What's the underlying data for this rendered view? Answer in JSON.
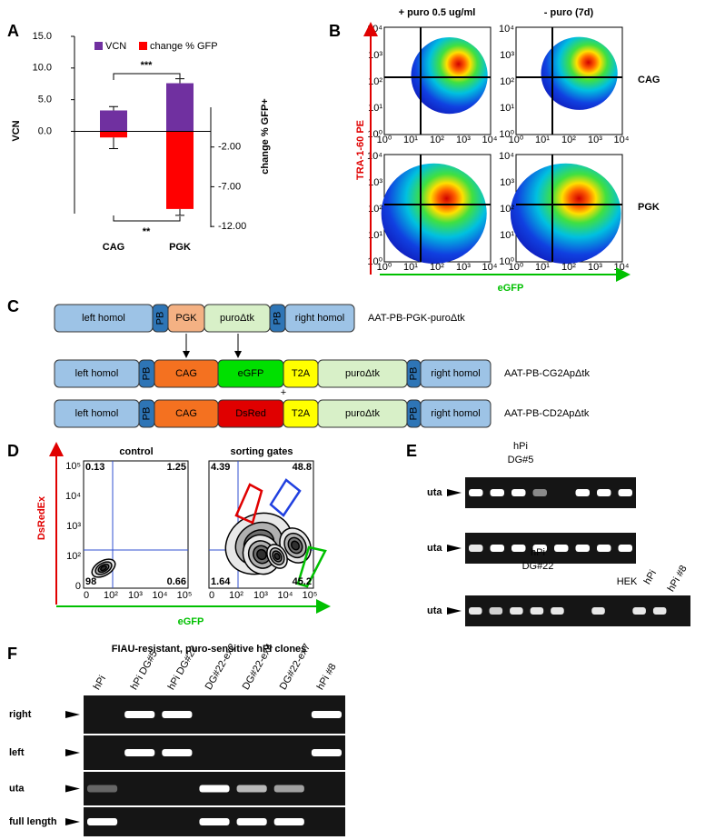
{
  "panel_labels": [
    "A",
    "B",
    "C",
    "D",
    "E",
    "F"
  ],
  "panel_a": {
    "y_label": "VCN",
    "y2_label": "change % GFP+",
    "legend": [
      {
        "name": "VCN",
        "color": "#7030a0"
      },
      {
        "name": "change % GFP",
        "color": "#ff0000"
      }
    ],
    "categories": [
      "CAG",
      "PGK"
    ],
    "vcn": [
      3.3,
      7.6
    ],
    "vcn_err": [
      0.6,
      0.7
    ],
    "gfp_change": [
      -0.8,
      -9.8
    ],
    "gfp_err": [
      1.4,
      0.8
    ],
    "ylim": [
      -13,
      15
    ],
    "yticks": [
      {
        "value": 15,
        "label": "15.0"
      },
      {
        "value": 10,
        "label": "10.0"
      },
      {
        "value": 5,
        "label": "5.0"
      },
      {
        "value": 0,
        "label": "0.0"
      }
    ],
    "y2lim": [
      -12.1,
      3
    ],
    "y2ticks": [
      {
        "value": -2,
        "label": "-2.00"
      },
      {
        "value": -7,
        "label": "-7.00"
      },
      {
        "value": -12,
        "label": "-12.00"
      }
    ],
    "sig_top": "***",
    "sig_bottom": "**"
  },
  "panel_b": {
    "columns": [
      "+ puro 0.5 ug/ml",
      "- puro (7d)"
    ],
    "rows": [
      "CAG",
      "PGK"
    ],
    "y_label": "TRA-1-60 PE",
    "x_label": "eGFP",
    "axis_ticks": [
      "10⁰",
      "10¹",
      "10²",
      "10³",
      "10⁴"
    ]
  },
  "panel_c": {
    "constructs": [
      {
        "name": "AAT-PB-PGK-puroΔtk",
        "segments": [
          {
            "label": "left homol",
            "color": "#9dc3e6"
          },
          {
            "label": "PB",
            "color": "#2e75b6"
          },
          {
            "label": "PGK",
            "color": "#f4b183"
          },
          {
            "label": "puroΔtk",
            "color": "#d8f0c8"
          },
          {
            "label": "PB",
            "color": "#2e75b6"
          },
          {
            "label": "right homol",
            "color": "#9dc3e6"
          }
        ]
      },
      {
        "name": "AAT-PB-CG2ApΔtk",
        "segments": [
          {
            "label": "left homol",
            "color": "#9dc3e6"
          },
          {
            "label": "PB",
            "color": "#2e75b6"
          },
          {
            "label": "CAG",
            "color": "#f47120"
          },
          {
            "label": "eGFP",
            "color": "#00e000"
          },
          {
            "label": "T2A",
            "color": "#ffff00"
          },
          {
            "label": "puroΔtk",
            "color": "#d8f0c8"
          },
          {
            "label": "PB",
            "color": "#2e75b6"
          },
          {
            "label": "right homol",
            "color": "#9dc3e6"
          }
        ]
      },
      {
        "name": "AAT-PB-CD2ApΔtk",
        "segments": [
          {
            "label": "left homol",
            "color": "#9dc3e6"
          },
          {
            "label": "PB",
            "color": "#2e75b6"
          },
          {
            "label": "CAG",
            "color": "#f47120"
          },
          {
            "label": "DsRed",
            "color": "#e00000"
          },
          {
            "label": "T2A",
            "color": "#ffff00"
          },
          {
            "label": "puroΔtk",
            "color": "#d8f0c8"
          },
          {
            "label": "PB",
            "color": "#2e75b6"
          },
          {
            "label": "right homol",
            "color": "#9dc3e6"
          }
        ]
      }
    ],
    "plus": "+"
  },
  "panel_d": {
    "plots": [
      {
        "title": "control",
        "quadrants": [
          0.13,
          1.25,
          98,
          0.66
        ]
      },
      {
        "title": "sorting gates",
        "quadrants": [
          4.39,
          48.8,
          1.64,
          45.2
        ]
      }
    ],
    "y_label": "DsRedEx",
    "x_label": "eGFP",
    "axis_ticks": [
      "0",
      "10²",
      "10³",
      "10⁴",
      "10⁵"
    ]
  },
  "panel_e": {
    "row_labels": [
      "uta",
      "uta",
      "uta"
    ],
    "gel1_label": [
      "hPi",
      "DG#5"
    ],
    "gel3_label": [
      "hPi",
      "DG#22"
    ],
    "lane_labels": [
      "HEK",
      "hPi",
      "hPi #8"
    ]
  },
  "panel_f": {
    "title": "FIAU-resistant, puro-sensitive hPi clones",
    "lanes": [
      "hPi",
      "hPi DG#5",
      "hPi DG#22",
      "DG#22-ex2",
      "DG#22-ex4",
      "DG#22-ex7",
      "hPi #8"
    ],
    "rows": [
      "right",
      "left",
      "uta",
      "full length"
    ]
  }
}
